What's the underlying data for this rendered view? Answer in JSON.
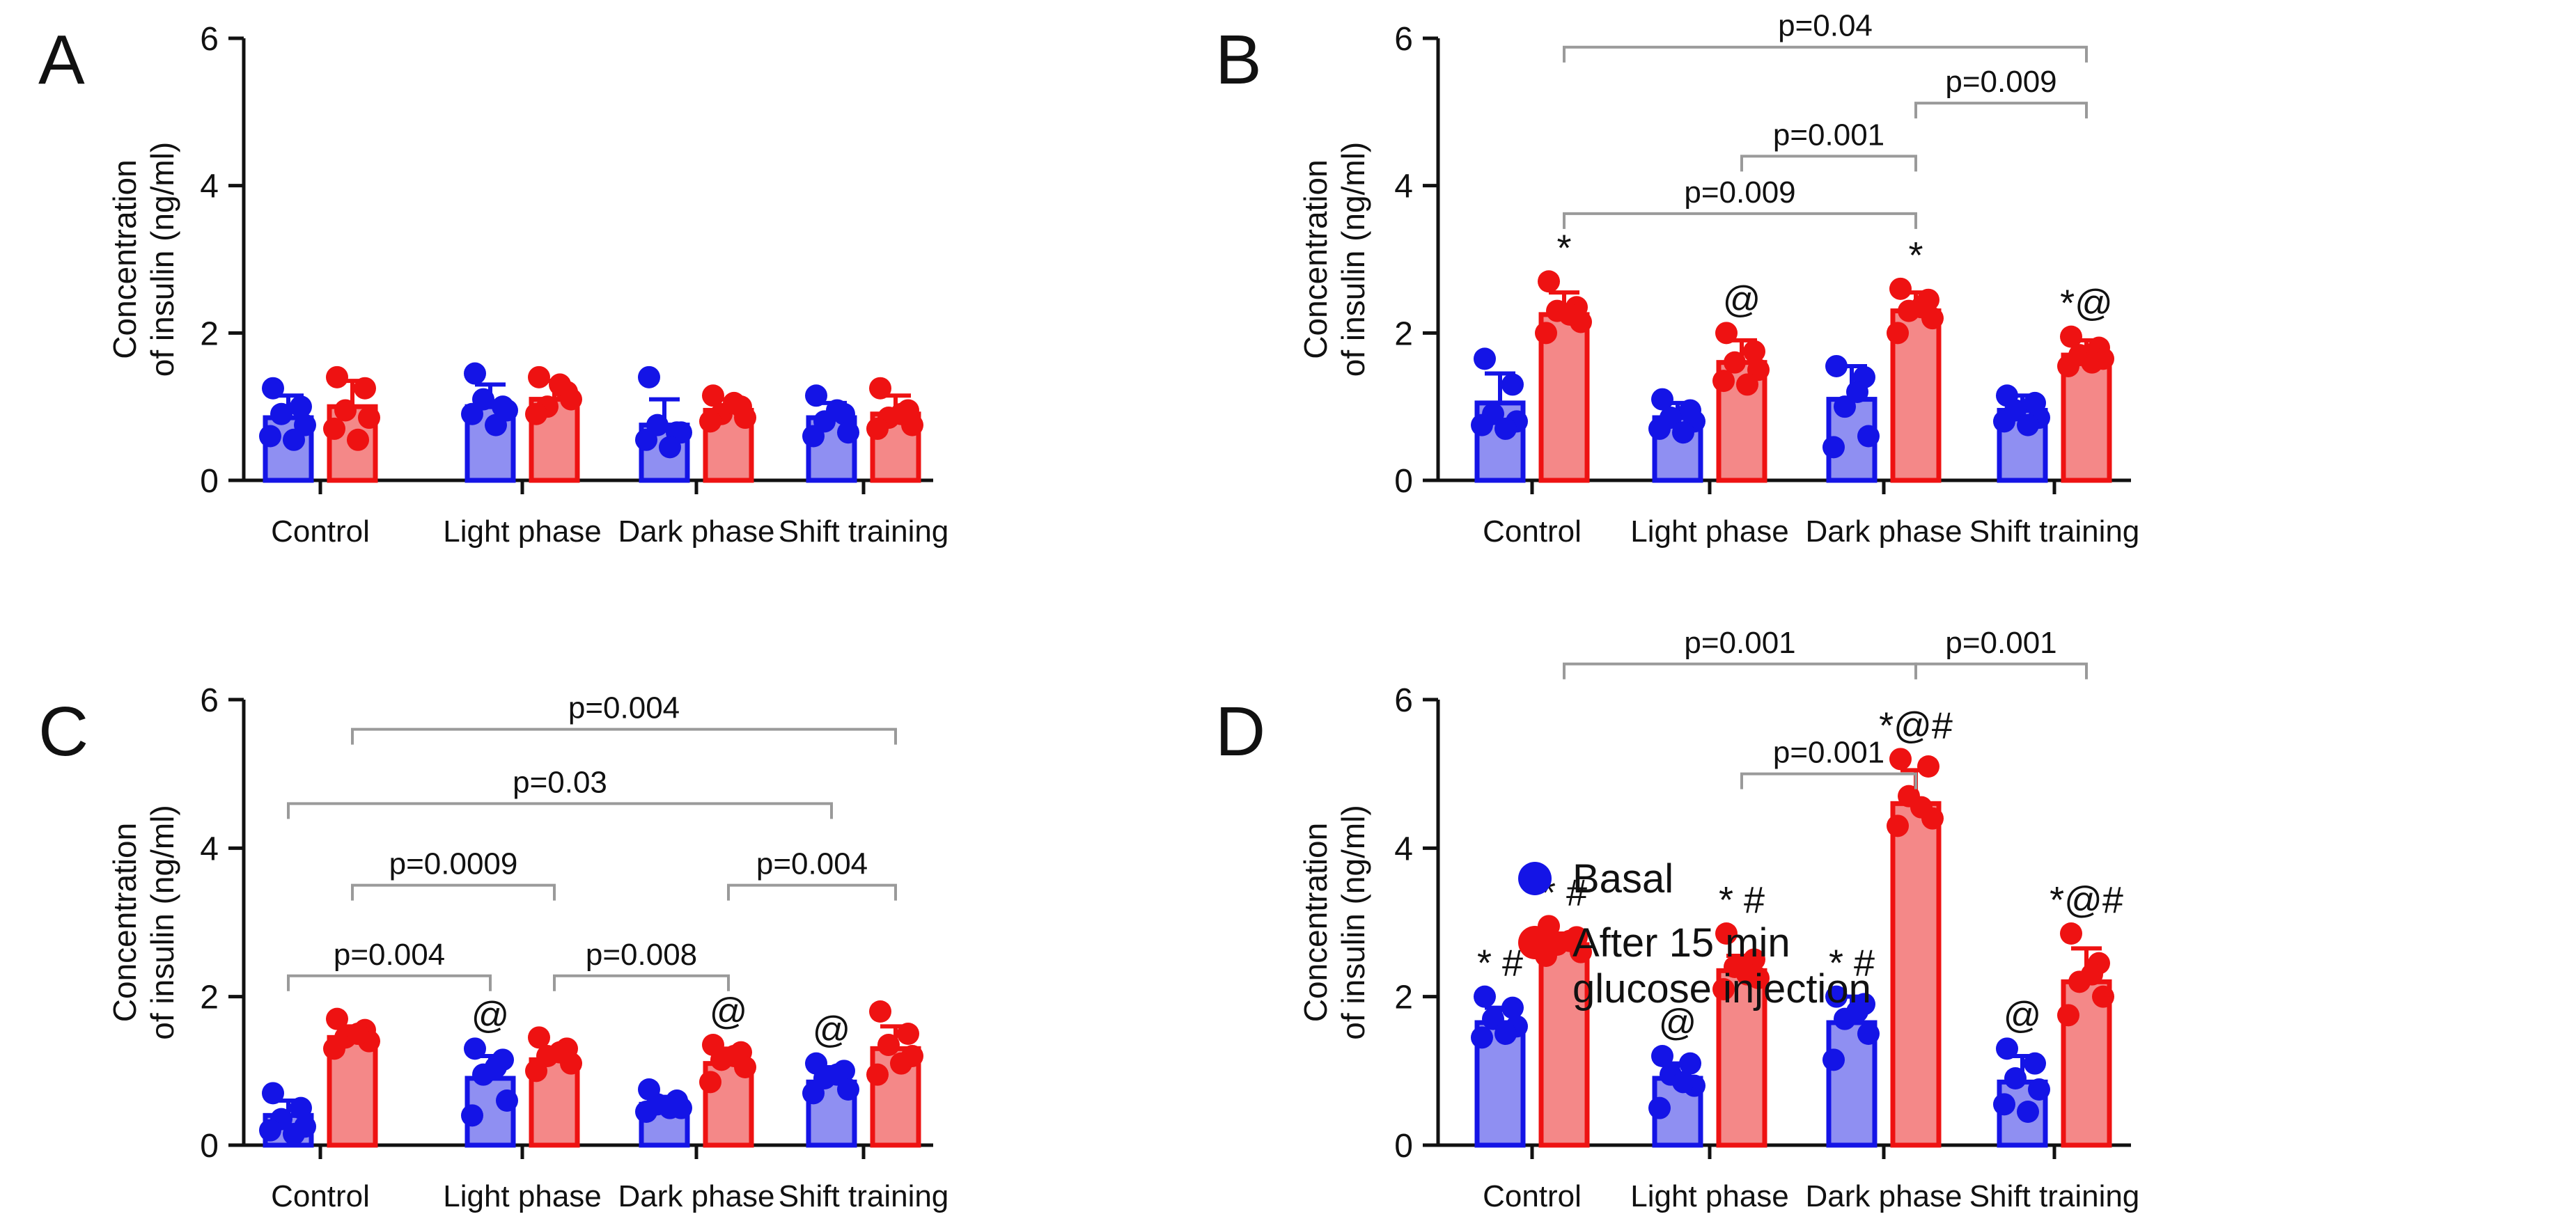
{
  "chart_data": [
    {
      "type": "bar",
      "panel_label": "A",
      "ylabel": "Concentration\nof insulin (ng/ml)",
      "ylim": [
        0,
        6
      ],
      "yticks": [
        0,
        2,
        4,
        6
      ],
      "categories": [
        "Control",
        "Light phase",
        "Dark phase",
        "Shift training"
      ],
      "series": [
        {
          "name": "Basal",
          "values": [
            0.85,
            1.0,
            0.75,
            0.85
          ],
          "errors": [
            0.3,
            0.3,
            0.35,
            0.2
          ],
          "points": [
            [
              1.25,
              1.0,
              0.9,
              0.75,
              0.6,
              0.55
            ],
            [
              1.45,
              1.0,
              1.1,
              0.95,
              0.9,
              0.75
            ],
            [
              1.4,
              0.65,
              0.75,
              0.65,
              0.55,
              0.45
            ],
            [
              1.15,
              0.9,
              0.8,
              0.65,
              0.6,
              0.95
            ]
          ],
          "annotations": [
            "",
            "",
            "",
            ""
          ]
        },
        {
          "name": "After 15 min glucose injection",
          "values": [
            1.0,
            1.1,
            0.95,
            0.9
          ],
          "errors": [
            0.35,
            0.25,
            0.15,
            0.25
          ],
          "points": [
            [
              1.4,
              1.25,
              0.95,
              0.85,
              0.7,
              0.55
            ],
            [
              1.4,
              1.2,
              1.0,
              1.1,
              0.9,
              1.3
            ],
            [
              1.15,
              1.0,
              0.9,
              0.85,
              0.8,
              1.05
            ],
            [
              1.25,
              0.95,
              0.85,
              0.75,
              0.7,
              0.9
            ]
          ],
          "annotations": [
            "",
            "",
            "",
            ""
          ]
        }
      ],
      "comparisons": []
    },
    {
      "type": "bar",
      "panel_label": "B",
      "ylabel": "Concentration\nof insulin (ng/ml)",
      "ylim": [
        0,
        6
      ],
      "yticks": [
        0,
        2,
        4,
        6
      ],
      "categories": [
        "Control",
        "Light phase",
        "Dark phase",
        "Shift training"
      ],
      "series": [
        {
          "name": "Basal",
          "values": [
            1.05,
            0.85,
            1.1,
            0.95
          ],
          "errors": [
            0.4,
            0.2,
            0.45,
            0.2
          ],
          "points": [
            [
              1.65,
              1.3,
              0.9,
              0.8,
              0.75,
              0.7
            ],
            [
              1.1,
              0.95,
              0.85,
              0.8,
              0.7,
              0.65
            ],
            [
              1.55,
              1.4,
              1.0,
              0.6,
              0.45,
              1.2
            ],
            [
              1.15,
              1.05,
              0.95,
              0.85,
              0.8,
              0.75
            ]
          ],
          "annotations": [
            "",
            "",
            "",
            ""
          ]
        },
        {
          "name": "After 15 min glucose injection",
          "values": [
            2.25,
            1.6,
            2.3,
            1.7
          ],
          "errors": [
            0.3,
            0.3,
            0.25,
            0.2
          ],
          "points": [
            [
              2.7,
              2.35,
              2.3,
              2.15,
              2.0,
              2.25
            ],
            [
              2.0,
              1.75,
              1.6,
              1.5,
              1.35,
              1.3
            ],
            [
              2.6,
              2.45,
              2.3,
              2.2,
              2.0,
              2.35
            ],
            [
              1.95,
              1.8,
              1.7,
              1.65,
              1.55,
              1.6
            ]
          ],
          "annotations": [
            "*",
            "@",
            "*",
            "*@"
          ]
        }
      ],
      "comparisons": [
        {
          "label": "p=0.04",
          "from": [
            0,
            1
          ],
          "to": [
            3,
            1
          ],
          "y": 5.88
        },
        {
          "label": "p=0.009",
          "from": [
            2,
            1
          ],
          "to": [
            3,
            1
          ],
          "y": 5.12
        },
        {
          "label": "p=0.001",
          "from": [
            1,
            1
          ],
          "to": [
            2,
            1
          ],
          "y": 4.4
        },
        {
          "label": "p=0.009",
          "from": [
            0,
            1
          ],
          "to": [
            2,
            1
          ],
          "y": 3.62
        }
      ]
    },
    {
      "type": "bar",
      "panel_label": "C",
      "ylabel": "Concentration\nof insulin (ng/ml)",
      "ylim": [
        0,
        6
      ],
      "yticks": [
        0,
        2,
        4,
        6
      ],
      "categories": [
        "Control",
        "Light phase",
        "Dark phase",
        "Shift training"
      ],
      "series": [
        {
          "name": "Basal",
          "values": [
            0.4,
            0.9,
            0.55,
            0.85
          ],
          "errors": [
            0.2,
            0.3,
            0.1,
            0.2
          ],
          "points": [
            [
              0.7,
              0.5,
              0.35,
              0.25,
              0.2,
              0.15
            ],
            [
              1.3,
              1.15,
              0.95,
              0.6,
              0.4,
              1.05
            ],
            [
              0.75,
              0.6,
              0.55,
              0.5,
              0.45,
              0.5
            ],
            [
              1.1,
              1.0,
              0.9,
              0.75,
              0.7,
              0.95
            ]
          ],
          "annotations": [
            "",
            "@",
            "",
            "@"
          ]
        },
        {
          "name": "After 15 min glucose injection",
          "values": [
            1.45,
            1.15,
            1.1,
            1.3
          ],
          "errors": [
            0.15,
            0.15,
            0.2,
            0.3
          ],
          "points": [
            [
              1.7,
              1.55,
              1.45,
              1.4,
              1.3,
              1.5
            ],
            [
              1.45,
              1.3,
              1.2,
              1.1,
              1.0,
              1.25
            ],
            [
              1.35,
              1.25,
              1.15,
              1.05,
              0.85,
              1.2
            ],
            [
              1.8,
              1.5,
              1.35,
              1.2,
              0.95,
              1.1
            ]
          ],
          "annotations": [
            "",
            "",
            "@",
            ""
          ]
        }
      ],
      "comparisons": [
        {
          "label": "p=0.004",
          "from": [
            0,
            1
          ],
          "to": [
            3,
            1
          ],
          "y": 5.6
        },
        {
          "label": "p=0.03",
          "from": [
            0,
            0
          ],
          "to": [
            3,
            0
          ],
          "y": 4.6
        },
        {
          "label": "p=0.0009",
          "from": [
            0,
            1
          ],
          "to": [
            1,
            1
          ],
          "y": 3.5
        },
        {
          "label": "p=0.004",
          "from": [
            2,
            1
          ],
          "to": [
            3,
            1
          ],
          "y": 3.5
        },
        {
          "label": "p=0.004",
          "from": [
            0,
            0
          ],
          "to": [
            1,
            0
          ],
          "y": 2.28
        },
        {
          "label": "p=0.008",
          "from": [
            1,
            1
          ],
          "to": [
            2,
            1
          ],
          "y": 2.28
        }
      ]
    },
    {
      "type": "bar",
      "panel_label": "D",
      "ylabel": "Concentration\nof insulin (ng/ml)",
      "ylim": [
        0,
        6
      ],
      "yticks": [
        0,
        2,
        4,
        6
      ],
      "categories": [
        "Control",
        "Light phase",
        "Dark phase",
        "Shift training"
      ],
      "series": [
        {
          "name": "Basal",
          "values": [
            1.65,
            0.9,
            1.65,
            0.85
          ],
          "errors": [
            0.2,
            0.2,
            0.35,
            0.35
          ],
          "points": [
            [
              2.0,
              1.85,
              1.7,
              1.6,
              1.45,
              1.5
            ],
            [
              1.2,
              1.1,
              0.95,
              0.8,
              0.5,
              0.85
            ],
            [
              2.0,
              1.9,
              1.7,
              1.5,
              1.15,
              1.8
            ],
            [
              1.3,
              1.1,
              0.9,
              0.75,
              0.55,
              0.45
            ]
          ],
          "annotations": [
            "* #",
            "@",
            "* #",
            "@"
          ]
        },
        {
          "name": "After 15 min glucose injection",
          "values": [
            2.7,
            2.35,
            4.6,
            2.2
          ],
          "errors": [
            0.15,
            0.2,
            0.45,
            0.45
          ],
          "points": [
            [
              2.95,
              2.8,
              2.7,
              2.6,
              2.55,
              2.75
            ],
            [
              2.85,
              2.5,
              2.4,
              2.25,
              2.1,
              2.3
            ],
            [
              5.2,
              5.1,
              4.7,
              4.4,
              4.3,
              4.55
            ],
            [
              2.85,
              2.45,
              2.2,
              2.0,
              1.75,
              2.3
            ]
          ],
          "annotations": [
            "* #",
            "* #",
            "*@#",
            "*@#"
          ]
        }
      ],
      "comparisons": [
        {
          "label": "p=0.001",
          "from": [
            0,
            1
          ],
          "to": [
            2,
            1
          ],
          "y": 6.48
        },
        {
          "label": "p=0.001",
          "from": [
            2,
            1
          ],
          "to": [
            3,
            1
          ],
          "y": 6.48
        },
        {
          "label": "p=0.001",
          "from": [
            1,
            1
          ],
          "to": [
            2,
            1
          ],
          "y": 5.0
        }
      ]
    }
  ],
  "legend": {
    "items": [
      {
        "label": "Basal",
        "color": "#1414e6"
      },
      {
        "label": "After 15 min\nglucose injection",
        "color": "#ee1212"
      }
    ]
  },
  "colors": {
    "basal_fill": "#8f8ff2",
    "basal_stroke": "#1414e6",
    "glucose_fill": "#f48888",
    "glucose_stroke": "#ee1212",
    "bracket": "#9a9a9a"
  }
}
